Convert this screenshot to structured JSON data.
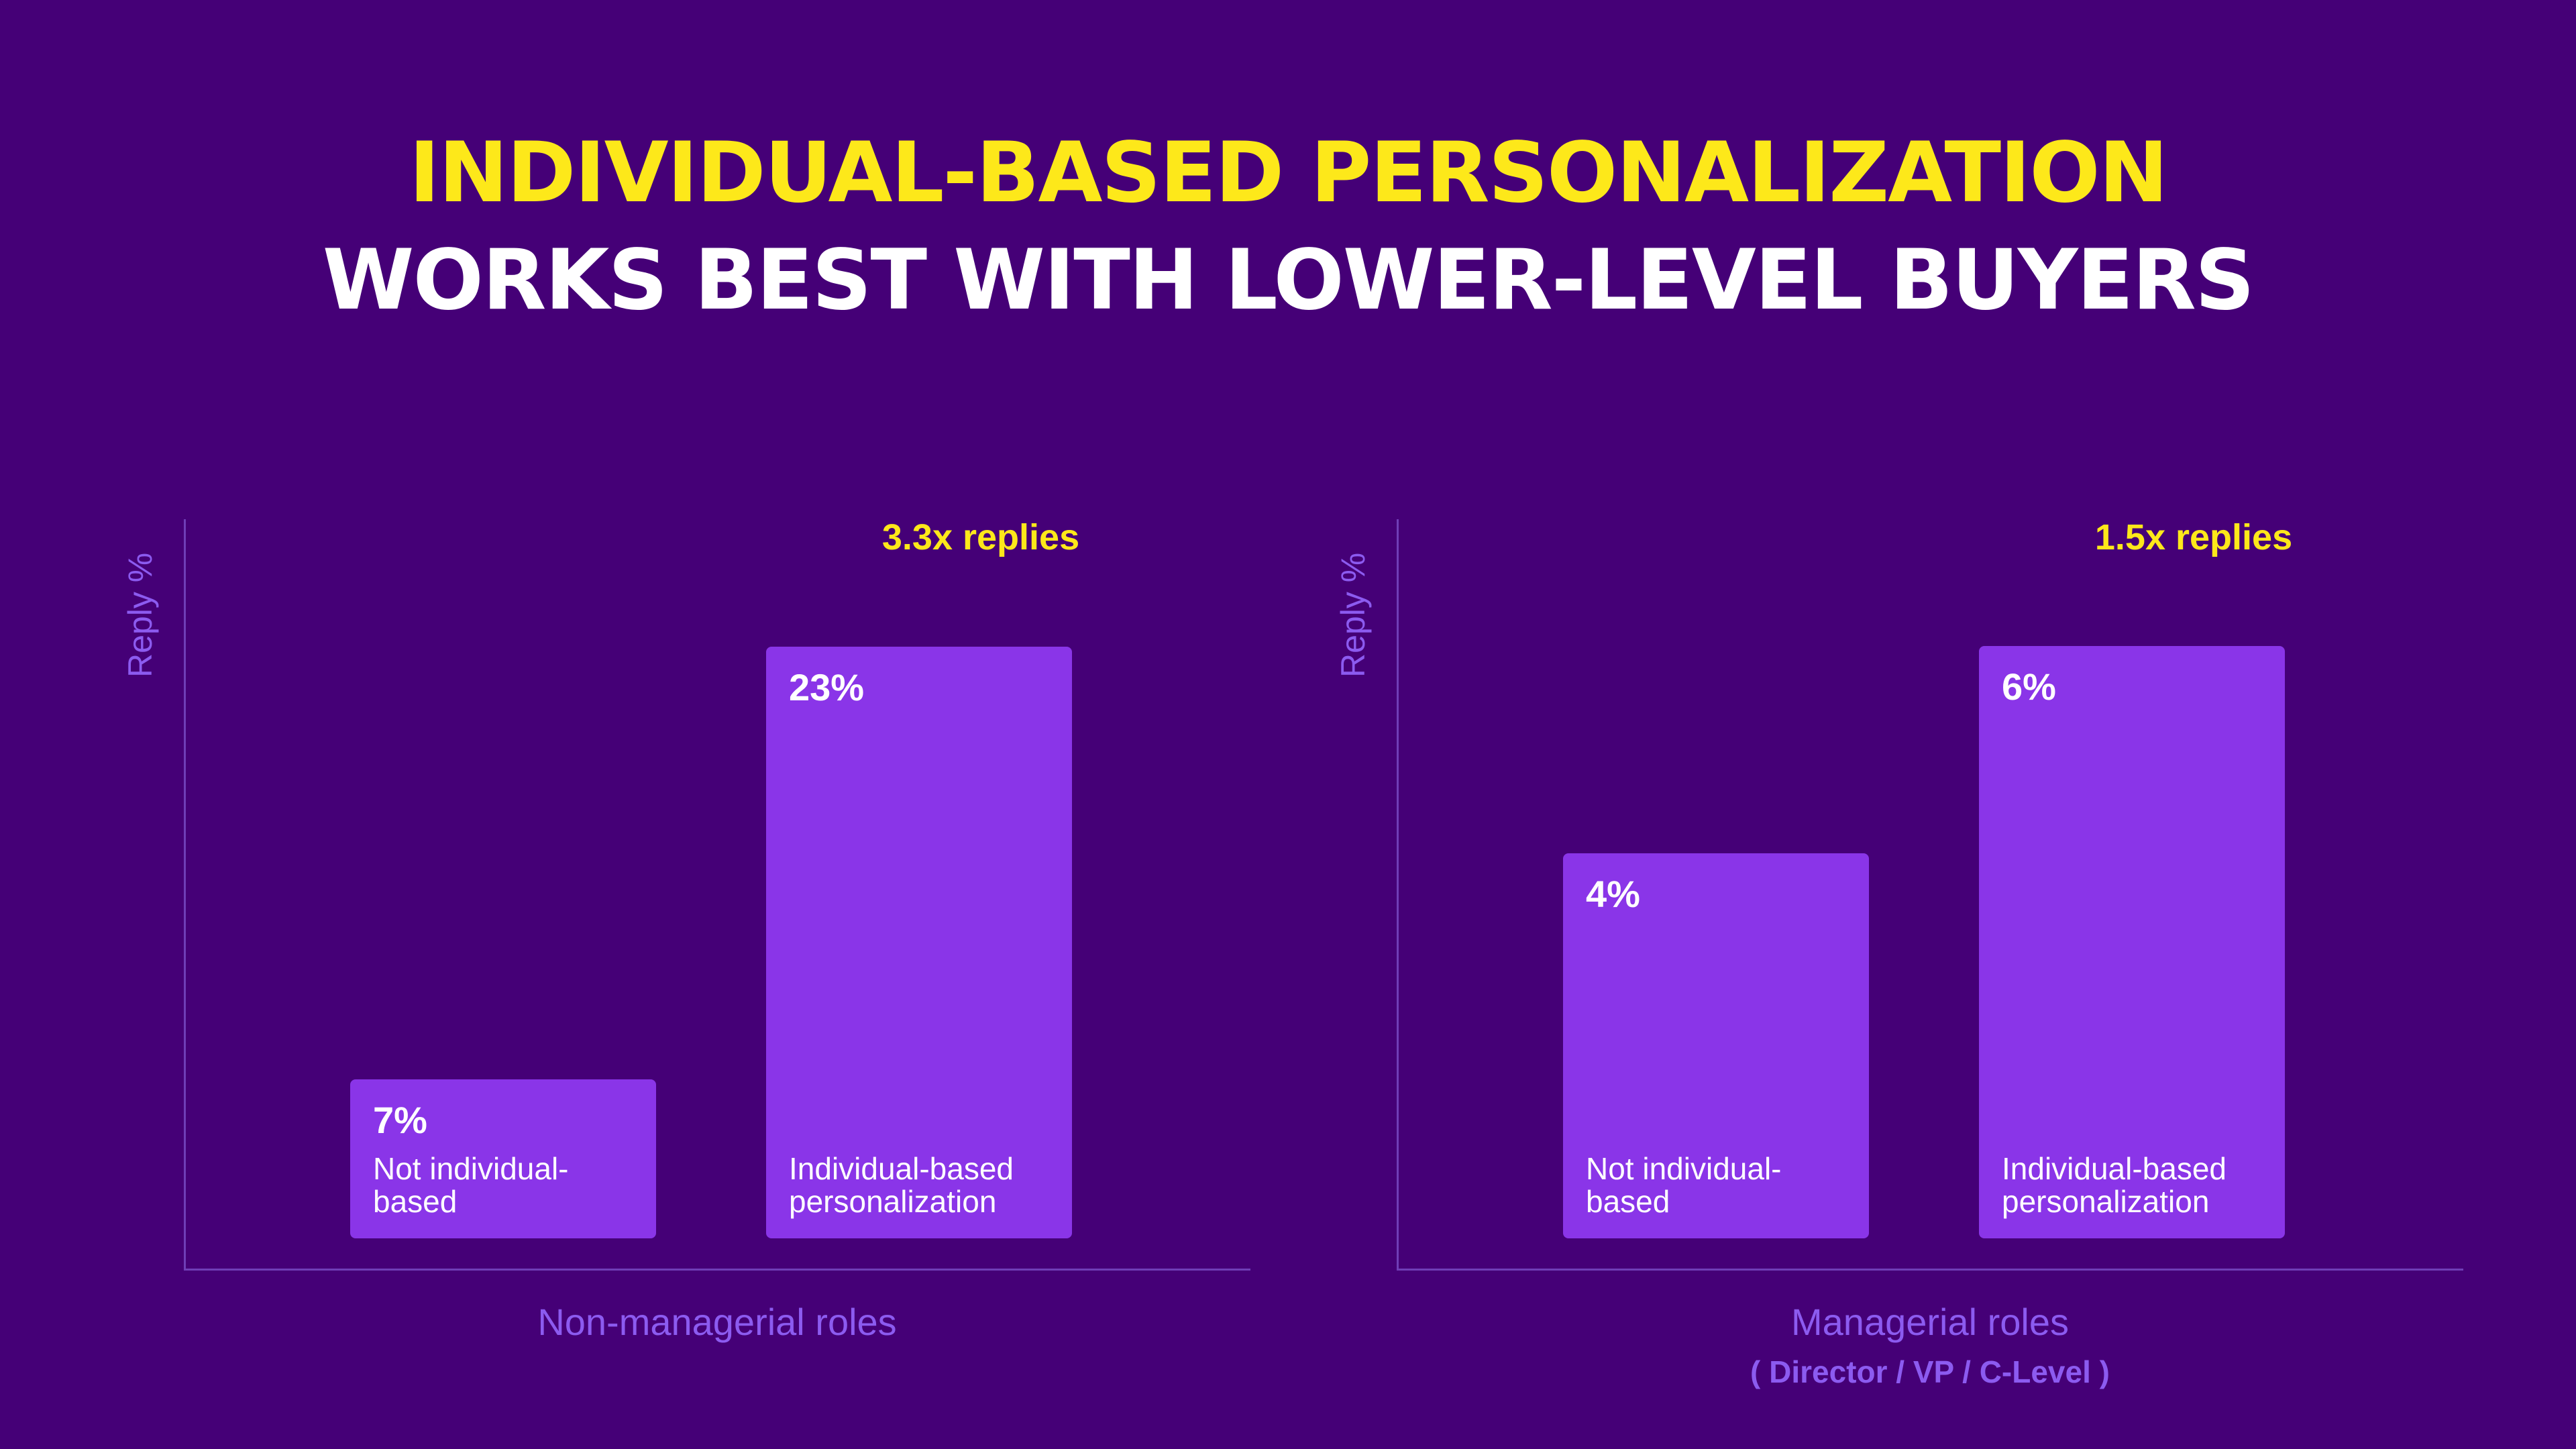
{
  "title": {
    "line1": "INDIVIDUAL-BASED PERSONALIZATION",
    "line2": "WORKS BEST WITH LOWER-LEVEL BUYERS"
  },
  "colors": {
    "background": "#450077",
    "bar": "#8a35e8",
    "accent": "#fde81a",
    "axis_text": "#8c5bf0"
  },
  "chart_data": [
    {
      "type": "bar",
      "ylabel": "Reply %",
      "xlabel": "Non-managerial roles",
      "xsub": "",
      "annotation": "3.3x replies",
      "ylim": [
        0,
        27.7
      ],
      "categories": [
        "Not individual-based",
        "Individual-based personalization"
      ],
      "category_lines": [
        [
          "Not individual-",
          "based"
        ],
        [
          "Individual-based",
          "personalization"
        ]
      ],
      "values": [
        7,
        23
      ],
      "value_labels": [
        "7%",
        "23%"
      ]
    },
    {
      "type": "bar",
      "ylabel": "Reply %",
      "xlabel": "Managerial roles",
      "xsub": "( Director / VP / C-Level )",
      "annotation": "1.5x replies",
      "ylim": [
        0,
        7.22
      ],
      "categories": [
        "Not individual-based",
        "Individual-based personalization"
      ],
      "category_lines": [
        [
          "Not individual-",
          "based"
        ],
        [
          "Individual-based",
          "personalization"
        ]
      ],
      "values": [
        4,
        6
      ],
      "value_labels": [
        "4%",
        "6%"
      ]
    }
  ]
}
